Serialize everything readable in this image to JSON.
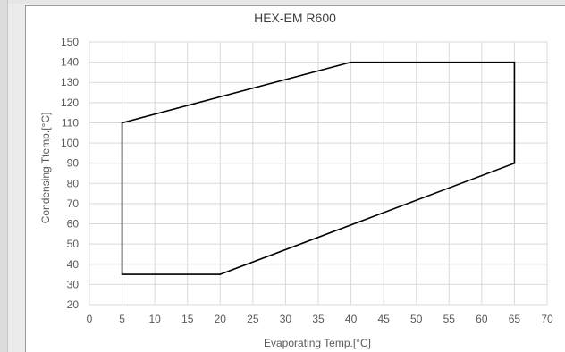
{
  "chart_data": {
    "type": "line",
    "title": "HEX-EM R600",
    "xlabel": "Evaporating Temp.[°C]",
    "ylabel": "Condensing  Ttemp.[°C]",
    "xlim": [
      0,
      70
    ],
    "ylim": [
      20,
      150
    ],
    "x_ticks": [
      "0",
      "5",
      "10",
      "15",
      "20",
      "25",
      "30",
      "35",
      "40",
      "45",
      "50",
      "55",
      "60",
      "65",
      "70"
    ],
    "y_ticks": [
      "20",
      "30",
      "40",
      "50",
      "60",
      "70",
      "80",
      "90",
      "100",
      "110",
      "120",
      "130",
      "140",
      "150"
    ],
    "grid": true,
    "legend": "none",
    "series": [
      {
        "closed": true,
        "points": [
          {
            "x": 5,
            "y": 35
          },
          {
            "x": 5,
            "y": 110
          },
          {
            "x": 40,
            "y": 140
          },
          {
            "x": 65,
            "y": 140
          },
          {
            "x": 65,
            "y": 90
          },
          {
            "x": 20,
            "y": 35
          }
        ]
      }
    ],
    "colors": {
      "line": "#000000",
      "grid": "#d9d9d9",
      "text": "#595959"
    }
  }
}
